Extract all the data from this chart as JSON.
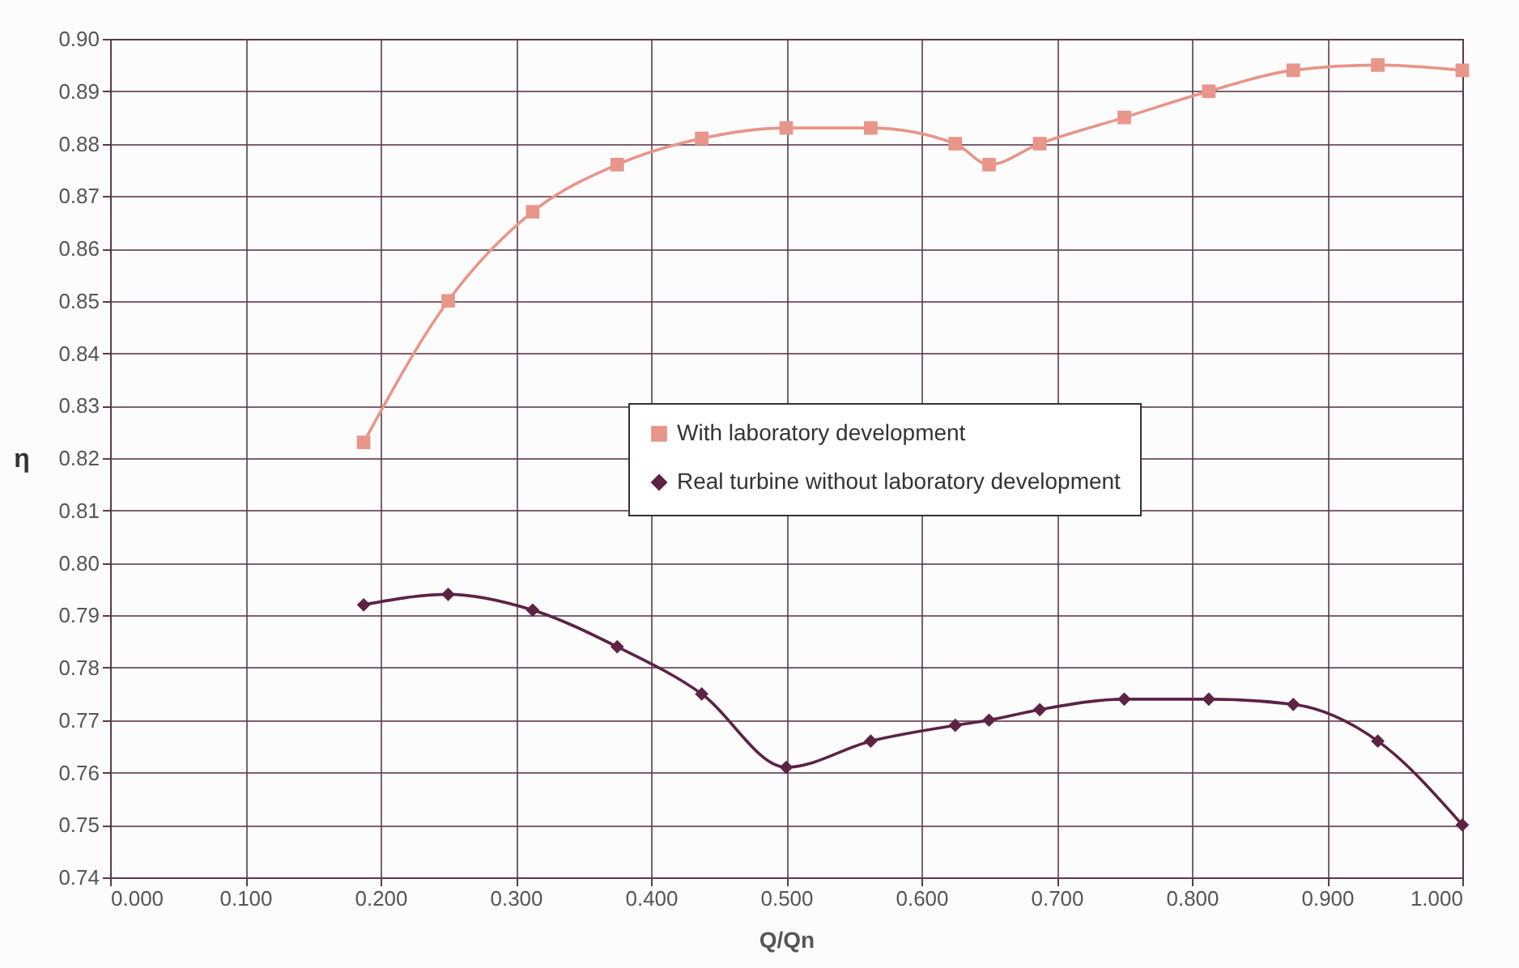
{
  "chart_data": {
    "type": "line",
    "xlabel": "Q/Qn",
    "ylabel": "η",
    "x": [
      0.1875,
      0.25,
      0.3125,
      0.375,
      0.4375,
      0.5,
      0.5625,
      0.625,
      0.65,
      0.6875,
      0.75,
      0.8125,
      0.875,
      0.9375,
      1.0
    ],
    "series": [
      {
        "name": "With laboratory development",
        "color": "#e8958a",
        "marker": "square",
        "values": [
          0.823,
          0.85,
          0.867,
          0.876,
          0.881,
          0.883,
          0.883,
          0.88,
          0.876,
          0.88,
          0.885,
          0.89,
          0.894,
          0.895,
          0.894
        ]
      },
      {
        "name": "Real turbine without laboratory development",
        "color": "#5c2344",
        "marker": "diamond",
        "values": [
          0.792,
          0.794,
          0.791,
          0.784,
          0.775,
          0.761,
          0.766,
          0.769,
          0.77,
          0.772,
          0.774,
          0.774,
          0.773,
          0.766,
          0.75
        ]
      }
    ],
    "xlim": [
      0.0,
      1.0
    ],
    "xticks": [
      {
        "value": 0,
        "label": "0.000"
      },
      {
        "value": 0.1,
        "label": "0.100"
      },
      {
        "value": 0.2,
        "label": "0.200"
      },
      {
        "value": 0.3,
        "label": "0.300"
      },
      {
        "value": 0.4,
        "label": "0.400"
      },
      {
        "value": 0.5,
        "label": "0.500"
      },
      {
        "value": 0.6,
        "label": "0.600"
      },
      {
        "value": 0.7,
        "label": "0.700"
      },
      {
        "value": 0.8,
        "label": "0.800"
      },
      {
        "value": 0.9,
        "label": "0.900"
      },
      {
        "value": 1,
        "label": "1.000"
      }
    ],
    "ylim": [
      0.74,
      0.9
    ],
    "yticks": [
      {
        "value": 0.74,
        "label": "0.74"
      },
      {
        "value": 0.75,
        "label": "0.75"
      },
      {
        "value": 0.76,
        "label": "0.76"
      },
      {
        "value": 0.77,
        "label": "0.77"
      },
      {
        "value": 0.78,
        "label": "0.78"
      },
      {
        "value": 0.79,
        "label": "0.79"
      },
      {
        "value": 0.8,
        "label": "0.80"
      },
      {
        "value": 0.81,
        "label": "0.81"
      },
      {
        "value": 0.82,
        "label": "0.82"
      },
      {
        "value": 0.83,
        "label": "0.83"
      },
      {
        "value": 0.84,
        "label": "0.84"
      },
      {
        "value": 0.85,
        "label": "0.85"
      },
      {
        "value": 0.86,
        "label": "0.86"
      },
      {
        "value": 0.87,
        "label": "0.87"
      },
      {
        "value": 0.88,
        "label": "0.88"
      },
      {
        "value": 0.89,
        "label": "0.89"
      },
      {
        "value": 0.9,
        "label": "0.90"
      }
    ],
    "grid": true,
    "legend": "center",
    "line_style": "solid"
  }
}
